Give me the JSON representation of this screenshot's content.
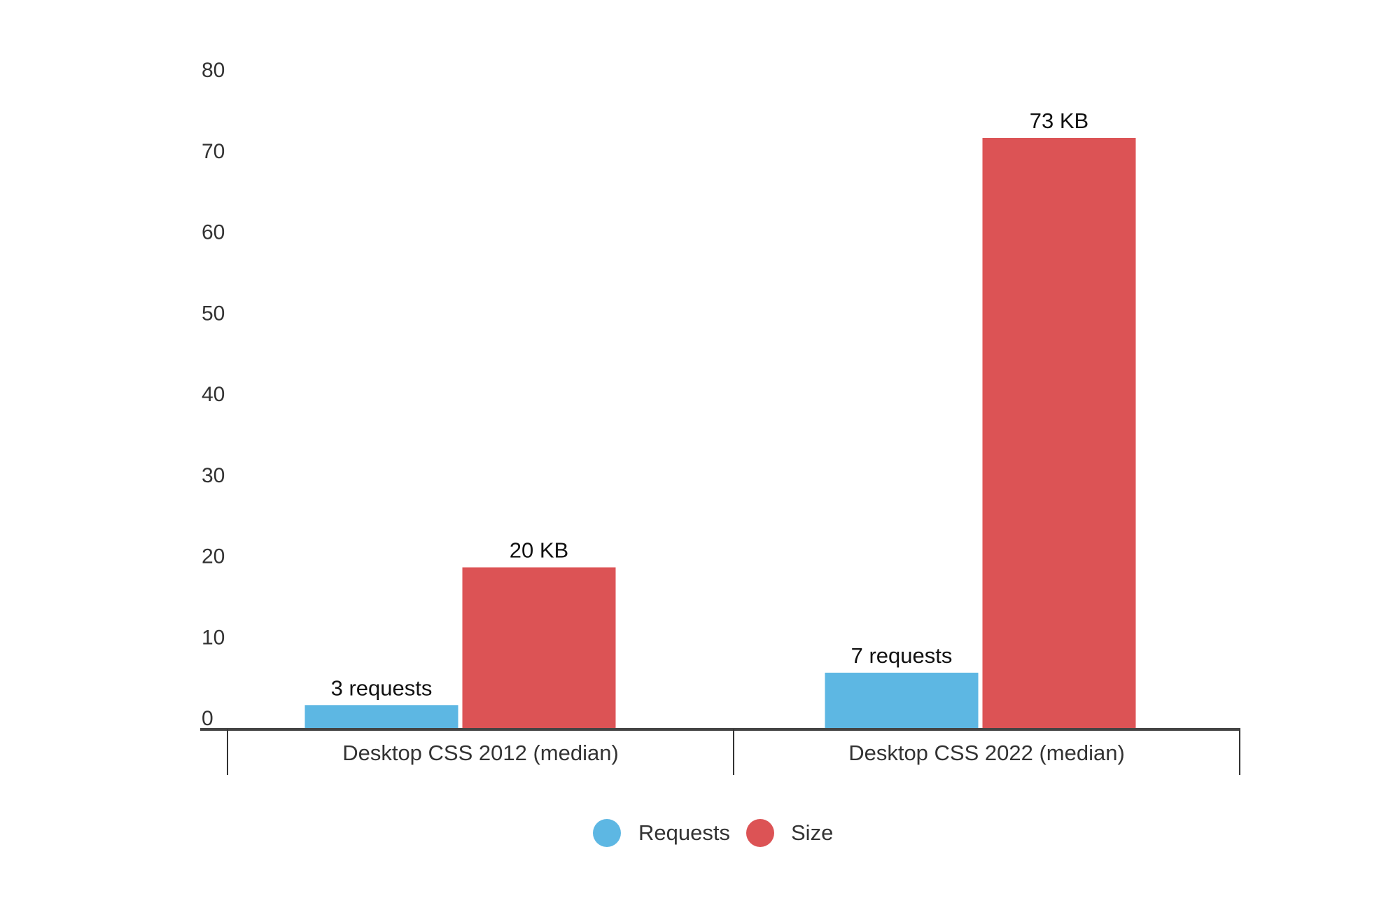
{
  "chart_data": {
    "type": "bar",
    "categories": [
      "Desktop CSS 2012 (median)",
      "Desktop CSS 2022 (median)"
    ],
    "series": [
      {
        "name": "Requests",
        "color": "#5DB7E3",
        "values": [
          3,
          7
        ],
        "data_labels": [
          "3 requests",
          "7 requests"
        ]
      },
      {
        "name": "Size",
        "color": "#DC5355",
        "values": [
          20,
          73
        ],
        "data_labels": [
          "20 KB",
          "73 KB"
        ]
      }
    ],
    "yticks": [
      "0",
      "10",
      "20",
      "30",
      "40",
      "50",
      "60",
      "70",
      "80"
    ],
    "ylim": [
      0,
      80
    ],
    "grid": false,
    "legend_position": "bottom-center",
    "title": "",
    "xlabel": "",
    "ylabel": ""
  }
}
